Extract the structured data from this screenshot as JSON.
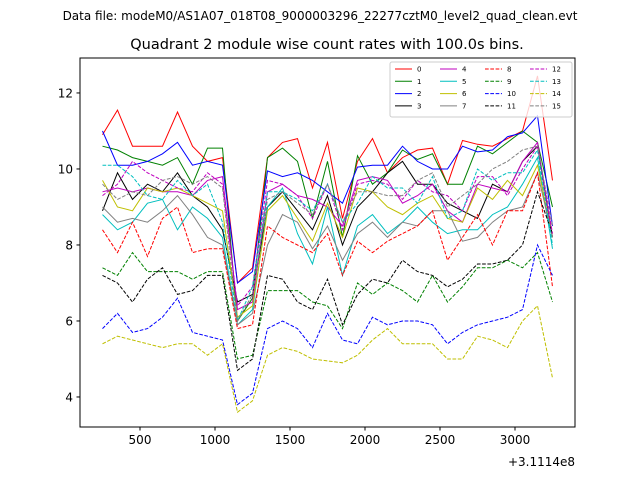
{
  "chart_data": {
    "type": "line",
    "suptitle": "Data file: modeM0/AS1A07_018T08_9000003296_22277cztM0_level2_quad_clean.evt",
    "title": "Quadrant 2 module wise count rates with 100.0s bins.",
    "xlabel": "",
    "ylabel": "",
    "x_offset_text": "+3.1114e8",
    "xlim": [
      100,
      3400
    ],
    "ylim": [
      3.21,
      12.92
    ],
    "xticks": [
      500,
      1000,
      1500,
      2000,
      2500,
      3000
    ],
    "xtick_labels": [
      "500",
      "1000",
      "1500",
      "2000",
      "2500",
      "3000"
    ],
    "yticks": [
      4,
      6,
      8,
      10,
      12
    ],
    "ytick_labels": [
      "4",
      "6",
      "8",
      "10",
      "12"
    ],
    "grid": false,
    "legend_position": "top-right",
    "x": [
      250,
      350,
      450,
      550,
      650,
      750,
      850,
      950,
      1050,
      1150,
      1250,
      1350,
      1450,
      1550,
      1650,
      1750,
      1850,
      1950,
      2050,
      2150,
      2250,
      2350,
      2450,
      2550,
      2650,
      2750,
      2850,
      2950,
      3050,
      3150,
      3250
    ],
    "series": [
      {
        "name": "0",
        "color": "#ff0000",
        "dash": false,
        "values": [
          10.9,
          11.55,
          10.6,
          10.6,
          10.6,
          11.5,
          10.6,
          10.2,
          10.3,
          7.0,
          7.4,
          10.3,
          10.7,
          10.8,
          9.5,
          10.7,
          8.7,
          10.2,
          10.8,
          9.9,
          10.3,
          10.5,
          10.55,
          9.6,
          10.75,
          10.65,
          10.6,
          10.8,
          11.0,
          12.45,
          9.7
        ]
      },
      {
        "name": "1",
        "color": "#008000",
        "dash": false,
        "values": [
          10.6,
          10.5,
          10.3,
          10.2,
          10.1,
          10.3,
          9.6,
          10.55,
          10.55,
          6.0,
          6.6,
          10.3,
          10.55,
          10.2,
          8.7,
          10.2,
          8.2,
          10.35,
          9.6,
          9.9,
          10.5,
          10.25,
          10.4,
          9.6,
          9.6,
          10.6,
          10.4,
          10.7,
          11.0,
          10.7,
          9.0
        ]
      },
      {
        "name": "2",
        "color": "#0000ff",
        "dash": false,
        "values": [
          11.0,
          10.1,
          10.1,
          10.2,
          10.4,
          10.7,
          10.1,
          10.2,
          10.1,
          7.0,
          7.3,
          9.95,
          9.8,
          9.9,
          9.7,
          9.4,
          9.1,
          10.05,
          10.1,
          10.1,
          10.6,
          10.2,
          10.0,
          10.0,
          10.6,
          10.45,
          10.5,
          10.85,
          10.95,
          11.4,
          8.5
        ]
      },
      {
        "name": "3",
        "color": "#000000",
        "dash": false,
        "values": [
          8.9,
          9.9,
          9.2,
          9.6,
          9.4,
          9.9,
          9.3,
          9.0,
          8.4,
          6.5,
          6.7,
          9.0,
          9.4,
          8.9,
          8.4,
          9.3,
          8.0,
          9.0,
          9.4,
          9.9,
          10.2,
          9.6,
          9.6,
          9.1,
          8.9,
          8.7,
          9.6,
          9.4,
          10.2,
          10.6,
          8.2
        ]
      },
      {
        "name": "4",
        "color": "#bf00bf",
        "dash": false,
        "values": [
          9.4,
          9.5,
          9.4,
          9.5,
          9.4,
          9.4,
          9.3,
          9.7,
          9.8,
          6.3,
          6.5,
          9.4,
          9.6,
          9.3,
          9.2,
          9.0,
          8.5,
          9.7,
          9.8,
          9.7,
          9.1,
          9.3,
          9.6,
          8.9,
          8.6,
          9.6,
          9.5,
          9.4,
          10.2,
          10.7,
          8.2
        ]
      },
      {
        "name": "5",
        "color": "#00bfbf",
        "dash": false,
        "values": [
          8.8,
          8.4,
          8.6,
          9.1,
          9.2,
          8.4,
          9.0,
          8.7,
          8.2,
          5.9,
          6.3,
          9.0,
          9.5,
          8.3,
          7.5,
          9.0,
          7.2,
          8.5,
          8.8,
          8.3,
          8.6,
          9.0,
          8.6,
          8.3,
          8.4,
          8.4,
          8.8,
          9.0,
          9.6,
          10.3,
          7.9
        ]
      },
      {
        "name": "6",
        "color": "#bfbf00",
        "dash": false,
        "values": [
          9.7,
          9.0,
          8.9,
          9.5,
          9.4,
          9.5,
          9.3,
          9.1,
          8.9,
          6.1,
          6.4,
          8.9,
          9.3,
          8.7,
          8.1,
          9.1,
          8.2,
          9.5,
          9.4,
          9.0,
          8.8,
          9.1,
          9.3,
          8.7,
          8.6,
          9.5,
          9.2,
          9.7,
          9.3,
          10.1,
          8.2
        ]
      },
      {
        "name": "7",
        "color": "#808080",
        "dash": false,
        "values": [
          9.0,
          8.6,
          8.7,
          8.6,
          8.9,
          9.3,
          8.8,
          8.2,
          8.0,
          5.9,
          6.2,
          8.0,
          8.8,
          8.6,
          7.9,
          8.5,
          7.6,
          8.3,
          8.6,
          8.2,
          8.6,
          8.5,
          8.9,
          8.9,
          8.1,
          8.2,
          8.6,
          8.9,
          9.0,
          9.9,
          8.2
        ]
      },
      {
        "name": "8",
        "color": "#ff0000",
        "dash": true,
        "values": [
          8.4,
          7.8,
          8.6,
          7.7,
          8.7,
          9.0,
          7.8,
          7.9,
          7.9,
          5.8,
          5.9,
          8.5,
          8.2,
          8.0,
          7.8,
          8.3,
          7.2,
          8.1,
          7.8,
          8.1,
          8.3,
          8.5,
          8.9,
          7.6,
          8.2,
          8.8,
          8.0,
          8.9,
          8.9,
          9.9,
          6.9
        ]
      },
      {
        "name": "9",
        "color": "#008000",
        "dash": true,
        "values": [
          7.4,
          7.2,
          7.8,
          7.3,
          7.3,
          7.3,
          7.1,
          7.3,
          7.3,
          5.0,
          5.1,
          6.8,
          6.8,
          6.8,
          6.5,
          6.4,
          5.8,
          7.0,
          6.7,
          7.0,
          6.8,
          6.5,
          7.2,
          6.5,
          6.9,
          7.4,
          7.4,
          7.6,
          7.4,
          7.8,
          6.5
        ]
      },
      {
        "name": "10",
        "color": "#0000ff",
        "dash": true,
        "values": [
          5.8,
          6.2,
          5.7,
          5.8,
          6.1,
          6.6,
          5.7,
          5.6,
          5.5,
          3.8,
          4.1,
          5.8,
          6.0,
          5.8,
          5.3,
          6.2,
          5.5,
          5.4,
          6.1,
          5.9,
          6.0,
          6.0,
          5.9,
          5.4,
          5.7,
          5.9,
          6.0,
          6.1,
          6.3,
          8.0,
          7.2
        ]
      },
      {
        "name": "11",
        "color": "#000000",
        "dash": true,
        "values": [
          7.2,
          7.0,
          6.5,
          7.1,
          7.4,
          6.7,
          6.8,
          7.2,
          7.2,
          4.7,
          5.0,
          7.2,
          7.1,
          6.5,
          6.3,
          7.1,
          5.9,
          6.7,
          7.1,
          7.0,
          7.6,
          7.3,
          7.2,
          6.9,
          7.1,
          7.5,
          7.5,
          7.6,
          8.0,
          9.4,
          8.3
        ]
      },
      {
        "name": "12",
        "color": "#bf00bf",
        "dash": true,
        "values": [
          9.3,
          9.6,
          10.2,
          9.9,
          9.7,
          9.5,
          9.4,
          9.9,
          9.6,
          6.4,
          6.9,
          9.7,
          9.6,
          9.3,
          8.7,
          9.6,
          8.4,
          9.6,
          9.7,
          9.6,
          9.2,
          9.7,
          9.4,
          9.3,
          8.9,
          9.8,
          9.8,
          9.3,
          10.0,
          10.6,
          8.3
        ]
      },
      {
        "name": "13",
        "color": "#00bfbf",
        "dash": true,
        "values": [
          10.1,
          10.1,
          9.8,
          9.3,
          9.2,
          9.7,
          9.3,
          9.6,
          8.6,
          6.0,
          6.9,
          9.4,
          9.4,
          9.2,
          8.9,
          9.6,
          8.6,
          9.1,
          9.8,
          9.5,
          9.5,
          9.1,
          9.8,
          8.7,
          8.9,
          10.0,
          9.7,
          9.9,
          9.9,
          10.5,
          8.0
        ]
      },
      {
        "name": "14",
        "color": "#bfbf00",
        "dash": true,
        "values": [
          5.4,
          5.6,
          5.5,
          5.4,
          5.3,
          5.4,
          5.4,
          5.1,
          5.4,
          3.6,
          3.9,
          5.1,
          5.3,
          5.2,
          5.0,
          4.95,
          4.9,
          5.1,
          5.5,
          5.8,
          5.4,
          5.4,
          5.4,
          5.0,
          5.0,
          5.6,
          5.5,
          5.3,
          6.0,
          6.4,
          4.5
        ]
      },
      {
        "name": "15",
        "color": "#808080",
        "dash": true,
        "values": [
          9.6,
          9.2,
          9.4,
          9.3,
          9.7,
          9.8,
          9.6,
          9.8,
          9.5,
          6.0,
          6.7,
          9.2,
          9.4,
          9.1,
          8.8,
          9.6,
          8.6,
          9.4,
          9.4,
          9.3,
          9.3,
          9.7,
          9.9,
          9.0,
          9.3,
          9.6,
          10.0,
          10.2,
          10.5,
          10.6,
          8.5
        ]
      }
    ]
  }
}
